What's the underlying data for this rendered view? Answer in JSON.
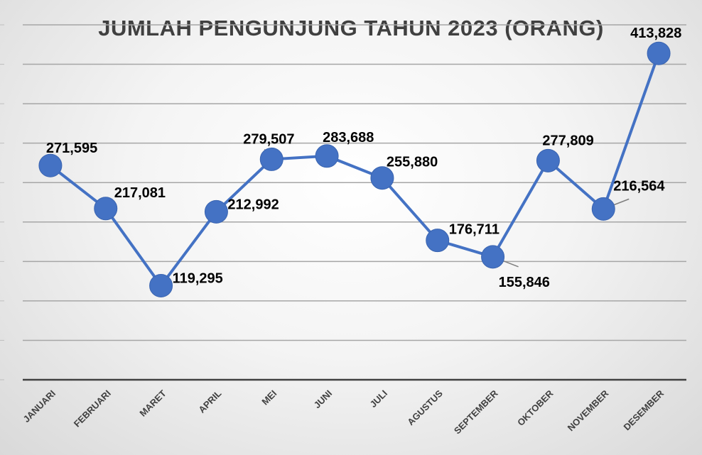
{
  "chart_data": {
    "type": "line",
    "title": "JUMLAH PENGUNJUNG TAHUN 2023 (ORANG)",
    "categories": [
      "JANUARI",
      "FEBRUARI",
      "MARET",
      "APRIL",
      "MEI",
      "JUNI",
      "JULI",
      "AGUSTUS",
      "SEPTEMBER",
      "OKTOBER",
      "NOVEMBER",
      "DESEMBER"
    ],
    "series": [
      {
        "values": [
          271595,
          217081,
          119295,
          212992,
          279507,
          283688,
          255880,
          176711,
          155846,
          277809,
          216564,
          413828
        ],
        "labels": [
          "271,595",
          "217,081",
          "119,295",
          "212,992",
          "279,507",
          "283,688",
          "255,880",
          "176,711",
          "155,846",
          "277,809",
          "216,564",
          "413,828"
        ]
      }
    ],
    "ylim": [
      0,
      450000
    ],
    "grid": true,
    "legend": "none",
    "colors": {
      "line": "#4472C4",
      "grid": "#a6a6a6",
      "axis": "#404040",
      "label": "#000000"
    }
  }
}
